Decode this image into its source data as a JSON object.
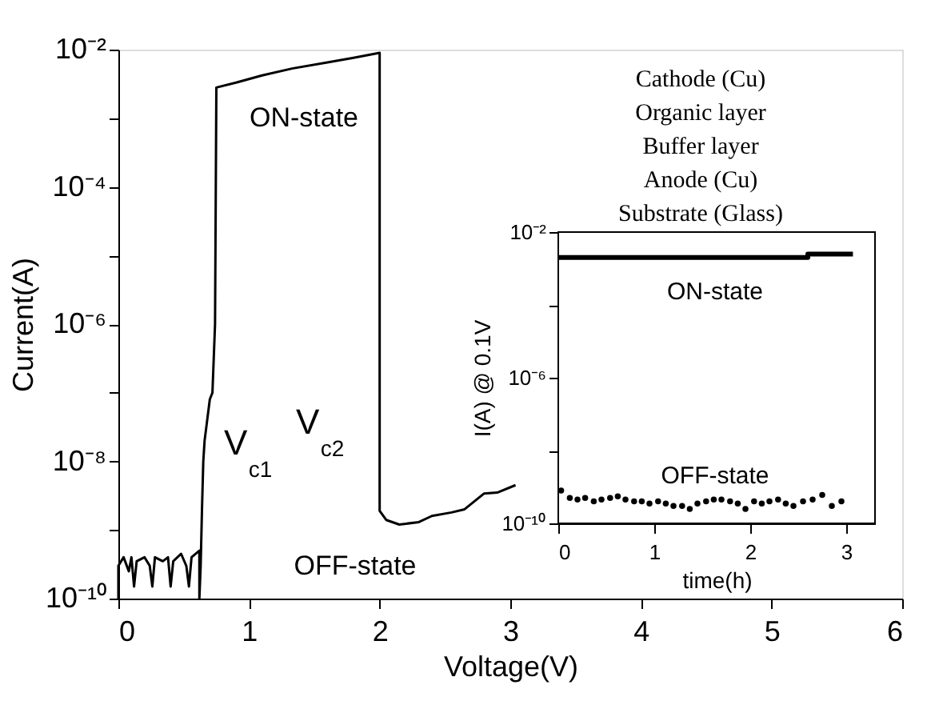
{
  "chart_data": [
    {
      "type": "line",
      "xlabel": "Voltage(V)",
      "ylabel": "Current(A)",
      "log": "y",
      "grid": false,
      "marker": "none",
      "line_style": "solid",
      "xlim": [
        0,
        6
      ],
      "xticks": [
        0,
        1,
        2,
        3,
        4,
        5,
        6
      ],
      "ylim": [
        1e-10,
        0.01
      ],
      "yticks": [
        {
          "value": 1e-10,
          "label": "10⁻¹⁰"
        },
        {
          "value": 1e-09,
          "label": null
        },
        {
          "value": 1e-08,
          "label": "10⁻⁸"
        },
        {
          "value": 1e-07,
          "label": null
        },
        {
          "value": 1e-06,
          "label": "10⁻⁶"
        },
        {
          "value": 1e-05,
          "label": null
        },
        {
          "value": 0.0001,
          "label": "10⁻⁴"
        },
        {
          "value": 0.001,
          "label": null
        },
        {
          "value": 0.01,
          "label": "10⁻²"
        }
      ],
      "series": [
        {
          "color": "#000000",
          "x": [
            0,
            0,
            0.04,
            0.08,
            0.1,
            0.12,
            0.14,
            0.2,
            0.24,
            0.26,
            0.28,
            0.34,
            0.38,
            0.4,
            0.42,
            0.48,
            0.52,
            0.54,
            0.56,
            0.62,
            0.62,
            0.63,
            0.64,
            0.65,
            0.66,
            0.68,
            0.7,
            0.72,
            0.74,
            0.75,
            0.9,
            1.1,
            1.33,
            1.6,
            1.8,
            2.0,
            2.0,
            2.0,
            2.05,
            2.15,
            2.3,
            2.4,
            2.55,
            2.65,
            2.8,
            2.9,
            3.04
          ],
          "values": [
            1e-10,
            3e-10,
            4e-10,
            2.5e-10,
            4e-10,
            1.5e-10,
            3.5e-10,
            4e-10,
            3e-10,
            1.5e-10,
            4e-10,
            3.5e-10,
            4e-10,
            1.5e-10,
            3.5e-10,
            4.5e-10,
            3e-10,
            1.5e-10,
            4e-10,
            5e-10,
            1e-10,
            3e-10,
            2e-09,
            1e-08,
            2e-08,
            4e-08,
            8e-08,
            1e-07,
            1e-06,
            0.0028,
            0.0033,
            0.0042,
            0.0053,
            0.0065,
            0.0076,
            0.009,
            1e-07,
            1.9e-09,
            1.4e-09,
            1.2e-09,
            1.3e-09,
            1.6e-09,
            1.8e-09,
            2e-09,
            3.4e-09,
            3.5e-09,
            4.5e-09
          ]
        }
      ],
      "annotations": [
        "ON-state",
        "OFF-state",
        "V$_{c1}$",
        "V$_{c2}$"
      ]
    },
    {
      "type": "scatter",
      "xlabel": "time(h)",
      "ylabel": "I(A) @ 0.1V",
      "log": "y",
      "grid": false,
      "xlim": [
        0,
        3.3
      ],
      "xticks": [
        0,
        1,
        2,
        3
      ],
      "ylim": [
        1e-10,
        0.01
      ],
      "yticks": [
        {
          "value": 1e-10,
          "label": "10⁻¹⁰"
        },
        {
          "value": 1e-08,
          "label": null
        },
        {
          "value": 1e-06,
          "label": "10⁻⁶"
        },
        {
          "value": 0.0001,
          "label": null
        },
        {
          "value": 0.01,
          "label": "10⁻²"
        }
      ],
      "series": [
        {
          "type": "line",
          "color": "#000000",
          "line_style": "solid",
          "x": [
            0,
            2.6,
            2.6,
            3.07
          ],
          "values": [
            0.002,
            0.002,
            0.0025,
            0.0025
          ]
        },
        {
          "type": "scatter",
          "color": "#000000",
          "marker": "circle",
          "x": [
            0.03,
            0.12,
            0.2,
            0.28,
            0.37,
            0.45,
            0.54,
            0.62,
            0.7,
            0.79,
            0.87,
            0.95,
            1.04,
            1.12,
            1.2,
            1.29,
            1.37,
            1.45,
            1.54,
            1.62,
            1.7,
            1.79,
            1.87,
            1.95,
            2.04,
            2.12,
            2.2,
            2.29,
            2.37,
            2.45,
            2.55,
            2.65,
            2.75,
            2.85,
            2.95
          ],
          "values": [
            8e-10,
            5e-10,
            4.5e-10,
            5e-10,
            4e-10,
            4.5e-10,
            5e-10,
            5.5e-10,
            4.5e-10,
            4e-10,
            4e-10,
            3.5e-10,
            4e-10,
            3.5e-10,
            3e-10,
            3e-10,
            2.5e-10,
            3.5e-10,
            4e-10,
            4.5e-10,
            4.5e-10,
            4e-10,
            3.5e-10,
            2.5e-10,
            4e-10,
            3.5e-10,
            4e-10,
            4.5e-10,
            3.5e-10,
            3e-10,
            4e-10,
            4.5e-10,
            6e-10,
            3e-10,
            4e-10
          ]
        }
      ],
      "annotations": [
        "ON-state",
        "OFF-state",
        "Cathode (Cu)",
        "Organic layer",
        "Buffer layer",
        "Anode (Cu)",
        "Substrate (Glass)"
      ]
    }
  ]
}
